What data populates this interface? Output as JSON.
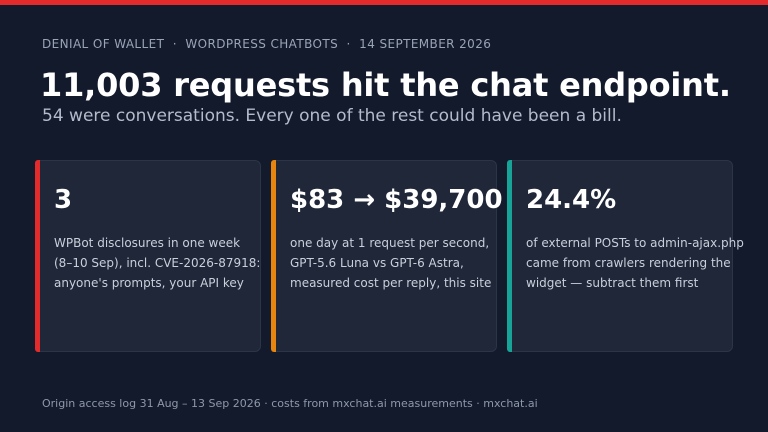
{
  "kicker": "DENIAL OF WALLET  ·  WORDPRESS CHATBOTS  ·  14 SEPTEMBER 2026",
  "headline": "11,003 requests hit the chat endpoint.",
  "subhead": "54 were conversations. Every one of the rest could have been a bill.",
  "colors": {
    "top_bar": "#e32b2b",
    "card1_accent": "#e32b2b",
    "card2_accent": "#e8850f",
    "card3_accent": "#17a398"
  },
  "cards": [
    {
      "stat": "3",
      "lines": [
        "WPBot disclosures in one week",
        "(8–10 Sep), incl. CVE-2026-87918:",
        "anyone's prompts, your API key"
      ]
    },
    {
      "stat": "$83 → $39,700",
      "lines": [
        "one day at 1 request per second,",
        "GPT-5.6 Luna vs GPT-6 Astra,",
        "measured cost per reply, this site"
      ]
    },
    {
      "stat": "24.4%",
      "lines": [
        "of external POSTs to admin-ajax.php",
        "came from crawlers rendering the",
        "widget — subtract them first"
      ]
    }
  ],
  "footer": "Origin access log 31 Aug – 13 Sep 2026 · costs from mxchat.ai measurements · mxchat.ai"
}
